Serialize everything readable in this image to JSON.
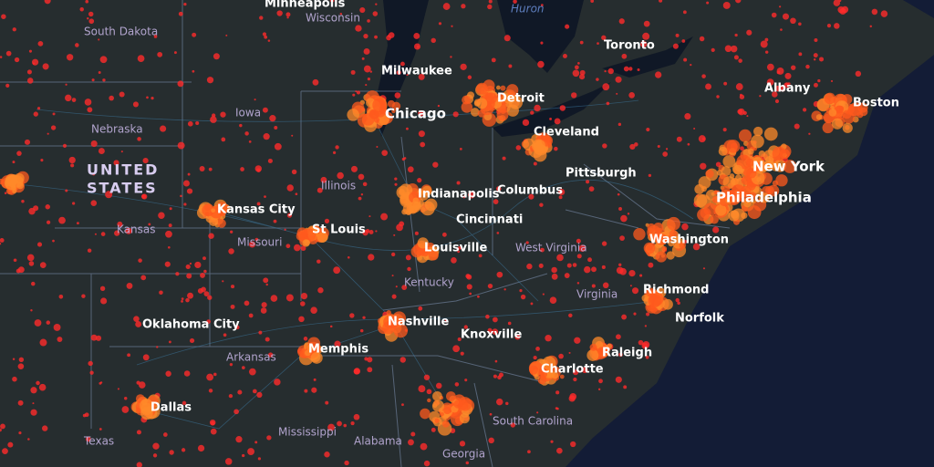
{
  "labels": [
    "Minneapolis",
    "Wisconsin",
    "Huron",
    "Toronto",
    "South Dakota",
    "Milwaukee",
    "Detroit",
    "Albany",
    "Boston",
    "Chicago",
    "Iowa",
    "Nebraska",
    "Cleveland",
    "UNITED",
    "STATES",
    "New York",
    "Pittsburgh",
    "Illinois",
    "Indianapolis",
    "Columbus",
    "Philadelphia",
    "Kansas City",
    "Cincinnati",
    "St Louis",
    "Kansas",
    "Missouri",
    "Louisville",
    "West Virginia",
    "Washington",
    "Kentucky",
    "Virginia",
    "Richmond",
    "Norfolk",
    "Nashville",
    "Oklahoma City",
    "Knoxville",
    "Raleigh",
    "Memphis",
    "Arkansas",
    "Charlotte",
    "Dallas",
    "Mississippi",
    "Alabama",
    "South Carolina",
    "Texas",
    "Georgia"
  ]
}
